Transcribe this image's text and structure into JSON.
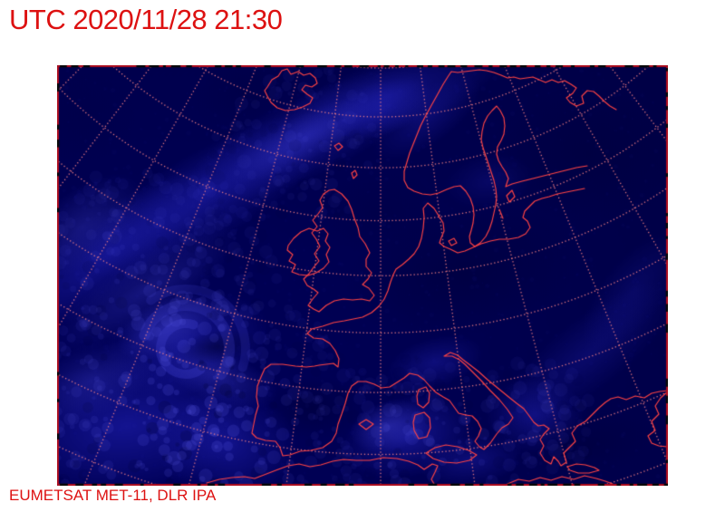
{
  "header": {
    "title": "UTC 2020/11/28 21:30"
  },
  "map": {
    "description": "Meteosat infrared satellite image of Europe with red coastline overlay and dotted lat/lon graticule"
  },
  "footer": {
    "credit": "EUMETSAT MET-11, DLR IPA"
  },
  "colors": {
    "page_bg": "#ffffff",
    "text_red": "#dd1111",
    "map_border": "#b01020",
    "tick_black": "#0a0a0a",
    "sea_dark": "#000040",
    "sea_mid": "#000058",
    "cloud_blue": "#2828c8",
    "cloud_bright": "#4646dc",
    "coastline": "#ff4343",
    "graticule": "#ff8484"
  }
}
